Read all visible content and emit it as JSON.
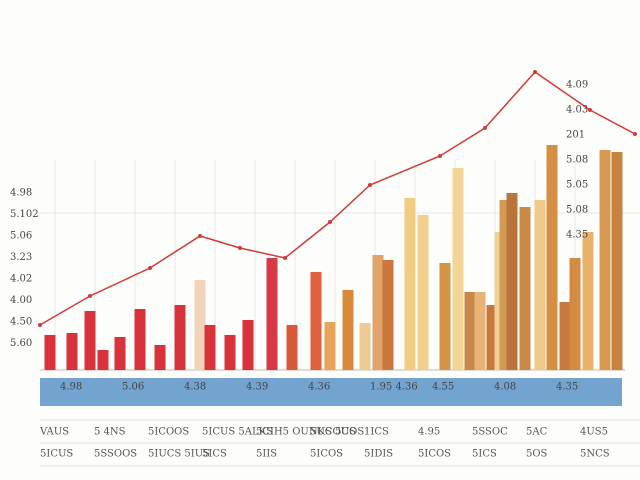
{
  "chart_data": {
    "type": "bar",
    "left_labels": [
      "4.98",
      "5.102",
      "5.06",
      "3.23",
      "4.02",
      "4.00",
      "4.50",
      "5.60"
    ],
    "right_labels": [
      "4.09",
      "4.03",
      "201",
      "5.08",
      "5.05",
      "5.08",
      "4.35"
    ],
    "band_labels": [
      "4.98",
      "5.06",
      "4.38",
      "4.39",
      "4.36",
      "1.95 4.36",
      "4.55",
      "4.08",
      "4.35"
    ],
    "rows": [
      [
        "VAUS",
        "5 4NS",
        "5ICOOS",
        "5ICUS 5ALKS",
        "5CIH5 OUNKS 5COS",
        "5UCOUS",
        "1ICS",
        "4.95",
        "5SSOC",
        "5AC",
        "4US5"
      ],
      [
        "5ICUS",
        "5SSOOS",
        "5IUCS 5IUS",
        "5ICS",
        "5IIS",
        "5ICOS",
        "5IDIS",
        "5ICOS",
        "5ICS",
        "5OS",
        "5NCS"
      ]
    ],
    "xlim": [
      0,
      640
    ],
    "ylim": [
      0,
      300
    ],
    "x": [
      50,
      72,
      90,
      103,
      120,
      140,
      160,
      180,
      200,
      210,
      230,
      248,
      272,
      292,
      316,
      330,
      348,
      365,
      378,
      388,
      410,
      423,
      445,
      458,
      470,
      480,
      492,
      500,
      505,
      512,
      525,
      540,
      552,
      565,
      575,
      588,
      605,
      617
    ],
    "values": [
      35,
      37,
      59,
      20,
      33,
      61,
      25,
      65,
      90,
      45,
      35,
      50,
      112,
      45,
      98,
      48,
      80,
      47,
      115,
      110,
      172,
      155,
      107,
      202,
      78,
      78,
      65,
      138,
      170,
      177,
      163,
      170,
      225,
      68,
      112,
      138,
      220,
      218
    ],
    "colors": [
      "#d8333a",
      "#d8333a",
      "#d8333a",
      "#d8333a",
      "#d8333a",
      "#d8333a",
      "#d8333a",
      "#d8333a",
      "#f3d3b8",
      "#d8333a",
      "#d8333a",
      "#d8333a",
      "#d83846",
      "#d9583a",
      "#e0603e",
      "#e9a25a",
      "#d9893c",
      "#eecb94",
      "#e2a36a",
      "#c9773a",
      "#f0cc80",
      "#f1cf8c",
      "#d49445",
      "#f2d596",
      "#c88848",
      "#e8b377",
      "#c77a3e",
      "#efd199",
      "#d29a53",
      "#b8743a",
      "#c98a48",
      "#f0ca8a",
      "#d58f45",
      "#c77a3e",
      "#d48a40",
      "#e8b26a",
      "#d89a50",
      "#c9823e"
    ],
    "line": {
      "name": "trend",
      "color": "#d23a35",
      "x": [
        40,
        90,
        150,
        200,
        240,
        285,
        330,
        370,
        440,
        485,
        535,
        590,
        635
      ],
      "values": [
        45,
        74,
        102,
        134,
        122,
        112,
        148,
        185,
        214,
        242,
        298,
        260,
        236
      ]
    },
    "band_color": "#5b94c8",
    "grid": true
  }
}
